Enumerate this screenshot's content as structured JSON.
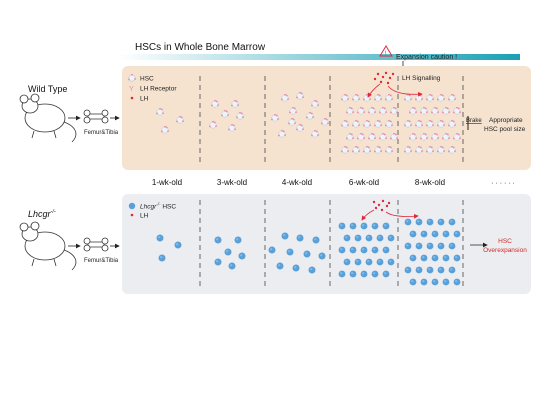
{
  "title": "HSCs in Whole Bone Marrow",
  "caution_label": "Expansion caution !",
  "wildtype": {
    "label": "Wild Type",
    "bone_label": "Femur&Tibia",
    "legend": [
      "HSC",
      "LH Receptor",
      "LH"
    ],
    "signal_label": "LH Signalling",
    "brake_label": "Brake",
    "outcome_line1": "Appropriate",
    "outcome_line2": "HSC pool size"
  },
  "ages": [
    "1-wk-old",
    "3-wk-old",
    "4-wk-old",
    "6-wk-old",
    "8-wk-old",
    "· · · · · ·"
  ],
  "knockout": {
    "label_main": "Lhcgr",
    "label_sup": "-/-",
    "bone_label": "Femur&Tibia",
    "legend_hsc_main": "Lhcgr",
    "legend_hsc_sup": "-/-",
    "legend_hsc_rest": " HSC",
    "legend_lh": "LH",
    "outcome_line1": "HSC",
    "outcome_line2": "Overexpansion"
  },
  "colors": {
    "wt_panel": "#f5e3d0",
    "ko_panel": "#ebedf0",
    "gradient_start": "#ffffff",
    "gradient_end": "#1aa0b4",
    "lh_red": "#e0283c",
    "ko_cell": "#5aa0d8",
    "wt_cell": "#eef3f8",
    "receptor": "#e58ab0",
    "outcome_red": "#d02a2a"
  }
}
